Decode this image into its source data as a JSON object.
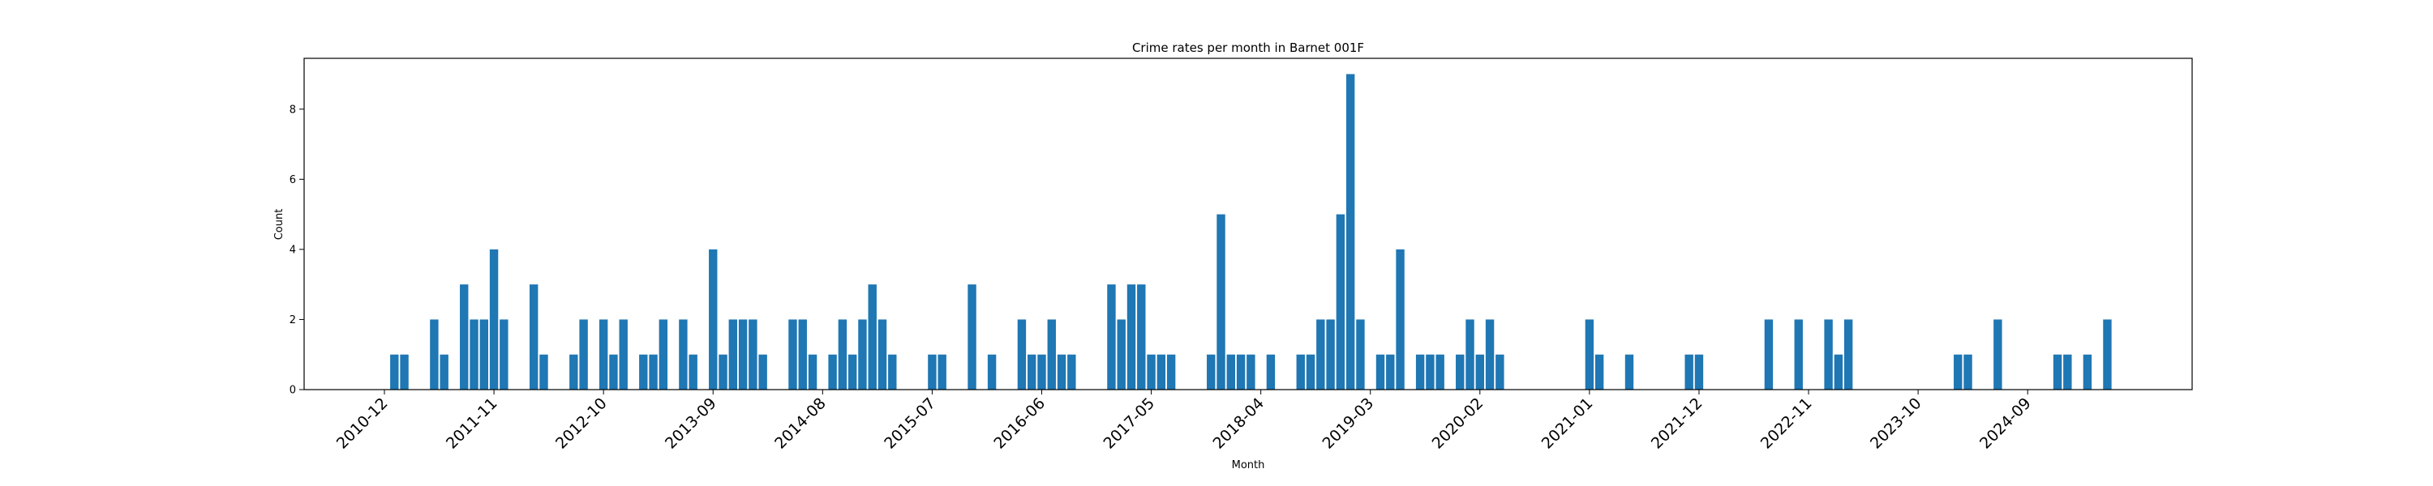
{
  "chart_data": {
    "type": "bar",
    "title": "Crime rates per month in Barnet 001F",
    "xlabel": "Month",
    "ylabel": "Count",
    "ylim": [
      0,
      9.45
    ],
    "yticks": [
      0,
      2,
      4,
      6,
      8
    ],
    "xticks": [
      "2010-12",
      "2011-11",
      "2012-10",
      "2013-09",
      "2014-08",
      "2015-07",
      "2016-06",
      "2017-05",
      "2018-04",
      "2019-03",
      "2020-02",
      "2021-01",
      "2021-12",
      "2022-11",
      "2023-10",
      "2024-09"
    ],
    "bar_color": "#1f77b4",
    "grid": false,
    "points": [
      {
        "x": "2011-01",
        "y": 1
      },
      {
        "x": "2011-02",
        "y": 1
      },
      {
        "x": "2011-05",
        "y": 2
      },
      {
        "x": "2011-06",
        "y": 1
      },
      {
        "x": "2011-08",
        "y": 3
      },
      {
        "x": "2011-09",
        "y": 2
      },
      {
        "x": "2011-10",
        "y": 2
      },
      {
        "x": "2011-11",
        "y": 4
      },
      {
        "x": "2011-12",
        "y": 2
      },
      {
        "x": "2012-03",
        "y": 3
      },
      {
        "x": "2012-04",
        "y": 1
      },
      {
        "x": "2012-07",
        "y": 1
      },
      {
        "x": "2012-08",
        "y": 2
      },
      {
        "x": "2012-10",
        "y": 2
      },
      {
        "x": "2012-11",
        "y": 1
      },
      {
        "x": "2012-12",
        "y": 2
      },
      {
        "x": "2013-02",
        "y": 1
      },
      {
        "x": "2013-03",
        "y": 1
      },
      {
        "x": "2013-04",
        "y": 2
      },
      {
        "x": "2013-06",
        "y": 2
      },
      {
        "x": "2013-07",
        "y": 1
      },
      {
        "x": "2013-09",
        "y": 4
      },
      {
        "x": "2013-10",
        "y": 1
      },
      {
        "x": "2013-11",
        "y": 2
      },
      {
        "x": "2013-12",
        "y": 2
      },
      {
        "x": "2014-01",
        "y": 2
      },
      {
        "x": "2014-02",
        "y": 1
      },
      {
        "x": "2014-05",
        "y": 2
      },
      {
        "x": "2014-06",
        "y": 2
      },
      {
        "x": "2014-07",
        "y": 1
      },
      {
        "x": "2014-09",
        "y": 1
      },
      {
        "x": "2014-10",
        "y": 2
      },
      {
        "x": "2014-11",
        "y": 1
      },
      {
        "x": "2014-12",
        "y": 2
      },
      {
        "x": "2015-01",
        "y": 3
      },
      {
        "x": "2015-02",
        "y": 2
      },
      {
        "x": "2015-03",
        "y": 1
      },
      {
        "x": "2015-07",
        "y": 1
      },
      {
        "x": "2015-08",
        "y": 1
      },
      {
        "x": "2015-11",
        "y": 3
      },
      {
        "x": "2016-01",
        "y": 1
      },
      {
        "x": "2016-04",
        "y": 2
      },
      {
        "x": "2016-05",
        "y": 1
      },
      {
        "x": "2016-06",
        "y": 1
      },
      {
        "x": "2016-07",
        "y": 2
      },
      {
        "x": "2016-08",
        "y": 1
      },
      {
        "x": "2016-09",
        "y": 1
      },
      {
        "x": "2017-01",
        "y": 3
      },
      {
        "x": "2017-02",
        "y": 2
      },
      {
        "x": "2017-03",
        "y": 3
      },
      {
        "x": "2017-04",
        "y": 3
      },
      {
        "x": "2017-05",
        "y": 1
      },
      {
        "x": "2017-06",
        "y": 1
      },
      {
        "x": "2017-07",
        "y": 1
      },
      {
        "x": "2017-11",
        "y": 1
      },
      {
        "x": "2017-12",
        "y": 5
      },
      {
        "x": "2018-01",
        "y": 1
      },
      {
        "x": "2018-02",
        "y": 1
      },
      {
        "x": "2018-03",
        "y": 1
      },
      {
        "x": "2018-05",
        "y": 1
      },
      {
        "x": "2018-08",
        "y": 1
      },
      {
        "x": "2018-09",
        "y": 1
      },
      {
        "x": "2018-10",
        "y": 2
      },
      {
        "x": "2018-11",
        "y": 2
      },
      {
        "x": "2018-12",
        "y": 5
      },
      {
        "x": "2019-01",
        "y": 9
      },
      {
        "x": "2019-02",
        "y": 2
      },
      {
        "x": "2019-04",
        "y": 1
      },
      {
        "x": "2019-05",
        "y": 1
      },
      {
        "x": "2019-06",
        "y": 4
      },
      {
        "x": "2019-08",
        "y": 1
      },
      {
        "x": "2019-09",
        "y": 1
      },
      {
        "x": "2019-10",
        "y": 1
      },
      {
        "x": "2019-12",
        "y": 1
      },
      {
        "x": "2020-01",
        "y": 2
      },
      {
        "x": "2020-02",
        "y": 1
      },
      {
        "x": "2020-03",
        "y": 2
      },
      {
        "x": "2020-04",
        "y": 1
      },
      {
        "x": "2021-01",
        "y": 2
      },
      {
        "x": "2021-02",
        "y": 1
      },
      {
        "x": "2021-05",
        "y": 1
      },
      {
        "x": "2021-11",
        "y": 1
      },
      {
        "x": "2021-12",
        "y": 1
      },
      {
        "x": "2022-07",
        "y": 2
      },
      {
        "x": "2022-10",
        "y": 2
      },
      {
        "x": "2023-01",
        "y": 2
      },
      {
        "x": "2023-02",
        "y": 1
      },
      {
        "x": "2023-03",
        "y": 2
      },
      {
        "x": "2024-02",
        "y": 1
      },
      {
        "x": "2024-03",
        "y": 1
      },
      {
        "x": "2024-06",
        "y": 2
      },
      {
        "x": "2024-12",
        "y": 1
      },
      {
        "x": "2025-01",
        "y": 1
      },
      {
        "x": "2025-03",
        "y": 1
      },
      {
        "x": "2025-05",
        "y": 2
      }
    ]
  }
}
